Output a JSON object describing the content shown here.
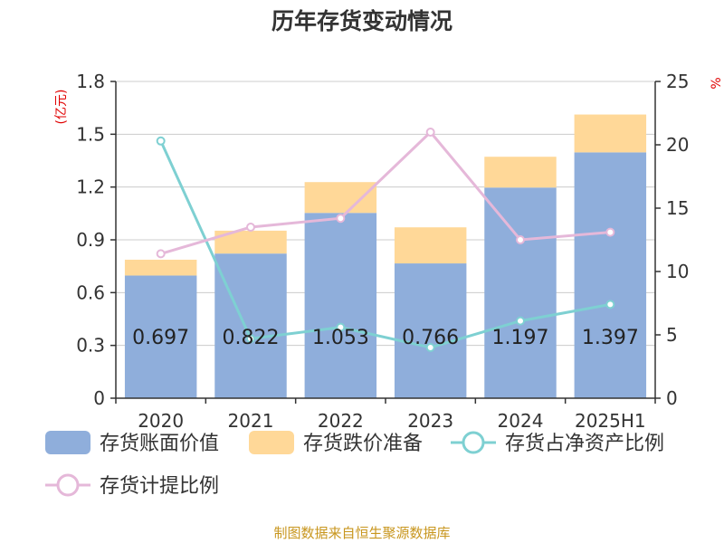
{
  "chart_data": {
    "type": "bar",
    "title": "历年存货变动情况",
    "left_unit": "(亿元)",
    "right_unit": "%",
    "categories": [
      "2020",
      "2021",
      "2022",
      "2023",
      "2024",
      "2025H1"
    ],
    "left_axis": {
      "min": 0,
      "max": 1.8,
      "ticks": [
        "0",
        "0.3",
        "0.6",
        "0.9",
        "1.2",
        "1.5",
        "1.8"
      ]
    },
    "right_axis": {
      "min": 0,
      "max": 25,
      "ticks": [
        "0",
        "5",
        "10",
        "15",
        "20",
        "25"
      ]
    },
    "series": [
      {
        "name": "存货账面价值",
        "kind": "bar",
        "axis": "left",
        "color": "#8faedb",
        "values": [
          0.697,
          0.822,
          1.053,
          0.766,
          1.197,
          1.397
        ],
        "labels": [
          "0.697",
          "0.822",
          "1.053",
          "0.766",
          "1.197",
          "1.397"
        ]
      },
      {
        "name": "存货跌价准备",
        "kind": "bar-stacked",
        "axis": "left",
        "color": "#ffd898",
        "values": [
          0.09,
          0.13,
          0.175,
          0.205,
          0.175,
          0.215
        ]
      },
      {
        "name": "存货占净资产比例",
        "kind": "line",
        "axis": "right",
        "color": "#7ed0d2",
        "values": [
          20.3,
          4.7,
          5.6,
          4.0,
          6.1,
          7.4
        ]
      },
      {
        "name": "存货计提比例",
        "kind": "line",
        "axis": "right",
        "color": "#e5b8d9",
        "values": [
          11.4,
          13.5,
          14.2,
          21.0,
          12.5,
          13.1
        ]
      }
    ],
    "grid": true,
    "legend_position": "bottom"
  },
  "footer": {
    "source": "制图数据来自恒生聚源数据库"
  }
}
